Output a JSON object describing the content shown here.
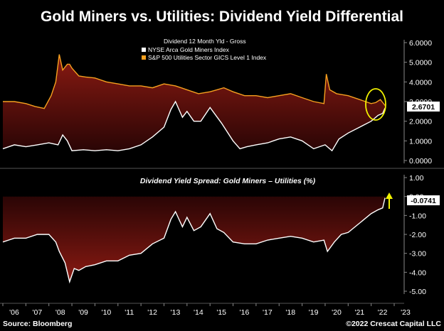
{
  "title": "Gold Miners vs. Utilities: Dividend Yield Differential",
  "spread_title": "Dividend Yield Spread: Gold Miners – Utilities (%)",
  "legend": {
    "title": "Dividend 12 Month Yld - Gross",
    "entries": [
      {
        "label": "NYSE Arca Gold Miners Index",
        "color": "#ffffff"
      },
      {
        "label": "S&P 500 Utilities Sector GICS Level 1 Index",
        "color": "#f6a01f"
      }
    ]
  },
  "badges": {
    "top_value": "2.6701",
    "bottom_value": "-0.0741"
  },
  "footer": {
    "source": "Source: Bloomberg",
    "copyright": "©2022 Crescat Capital LLC"
  },
  "colors": {
    "utilities": "#f6a01f",
    "gold_miners": "#ffffff",
    "fill": "#8a1a12",
    "highlight": "#f2f200"
  },
  "chart_data": [
    {
      "type": "line",
      "x_ticks": [
        "'06",
        "'07",
        "'08",
        "'09",
        "'10",
        "'11",
        "'12",
        "'13",
        "'14",
        "'15",
        "'16",
        "'17",
        "'18",
        "'19",
        "'20",
        "'21",
        "'22",
        "'23"
      ],
      "y_ticks": [
        "6.0000",
        "5.0000",
        "4.0000",
        "3.0000",
        "2.0000",
        "1.0000",
        "0.0000"
      ],
      "ylim": [
        0,
        6
      ],
      "xlim": [
        2006,
        2023
      ],
      "series": [
        {
          "name": "S&P 500 Utilities Sector GICS Level 1 Index",
          "x": [
            2006.0,
            2006.5,
            2007.0,
            2007.4,
            2007.8,
            2008.1,
            2008.3,
            2008.45,
            2008.6,
            2008.8,
            2008.9,
            2009.0,
            2009.3,
            2009.6,
            2010.0,
            2010.5,
            2011.0,
            2011.5,
            2012.0,
            2012.5,
            2013.0,
            2013.5,
            2014.0,
            2014.5,
            2015.0,
            2015.3,
            2015.6,
            2016.0,
            2016.5,
            2017.0,
            2017.5,
            2018.0,
            2018.5,
            2019.0,
            2019.5,
            2019.95,
            2020.05,
            2020.2,
            2020.5,
            2021.0,
            2021.5,
            2022.0,
            2022.2,
            2022.4,
            2022.6
          ],
          "values": [
            3.0,
            3.0,
            2.9,
            2.75,
            2.65,
            3.3,
            4.0,
            5.4,
            4.6,
            4.9,
            4.9,
            4.7,
            4.3,
            4.25,
            4.2,
            4.0,
            3.9,
            3.8,
            3.8,
            3.7,
            3.9,
            3.8,
            3.6,
            3.4,
            3.5,
            3.6,
            3.7,
            3.5,
            3.3,
            3.3,
            3.2,
            3.3,
            3.4,
            3.2,
            3.0,
            2.9,
            4.4,
            3.6,
            3.4,
            3.3,
            3.1,
            2.9,
            2.95,
            3.1,
            2.8
          ]
        },
        {
          "name": "NYSE Arca Gold Miners Index",
          "x": [
            2006.0,
            2006.5,
            2007.0,
            2007.5,
            2008.0,
            2008.4,
            2008.6,
            2008.8,
            2009.0,
            2009.5,
            2010.0,
            2010.5,
            2011.0,
            2011.5,
            2012.0,
            2012.5,
            2013.0,
            2013.3,
            2013.5,
            2013.8,
            2014.0,
            2014.3,
            2014.6,
            2015.0,
            2015.5,
            2016.0,
            2016.3,
            2016.6,
            2017.0,
            2017.5,
            2018.0,
            2018.5,
            2019.0,
            2019.5,
            2020.0,
            2020.3,
            2020.6,
            2021.0,
            2021.5,
            2022.0,
            2022.3,
            2022.5,
            2022.6
          ],
          "values": [
            0.6,
            0.8,
            0.7,
            0.8,
            0.9,
            0.8,
            1.3,
            1.0,
            0.5,
            0.55,
            0.5,
            0.55,
            0.5,
            0.6,
            0.8,
            1.2,
            1.7,
            2.6,
            3.0,
            2.2,
            2.5,
            2.0,
            2.0,
            2.7,
            1.9,
            1.0,
            0.6,
            0.7,
            0.8,
            0.9,
            1.1,
            1.2,
            1.0,
            0.6,
            0.8,
            0.5,
            1.1,
            1.4,
            1.7,
            2.0,
            2.3,
            2.4,
            2.67
          ]
        }
      ]
    },
    {
      "type": "area",
      "title": "Dividend Yield Spread: Gold Miners – Utilities (%)",
      "x_ticks": [
        "'06",
        "'07",
        "'08",
        "'09",
        "'10",
        "'11",
        "'12",
        "'13",
        "'14",
        "'15",
        "'16",
        "'17",
        "'18",
        "'19",
        "'20",
        "'21",
        "'22",
        "'23"
      ],
      "y_ticks": [
        "1.00",
        "0.00",
        "-1.00",
        "-2.00",
        "-3.00",
        "-4.00",
        "-5.00"
      ],
      "ylim": [
        -5,
        1
      ],
      "xlim": [
        2006,
        2023
      ],
      "series": [
        {
          "x": [
            2006.0,
            2006.5,
            2007.0,
            2007.5,
            2008.0,
            2008.3,
            2008.45,
            2008.7,
            2008.9,
            2009.1,
            2009.3,
            2009.6,
            2010.0,
            2010.5,
            2011.0,
            2011.5,
            2012.0,
            2012.5,
            2013.0,
            2013.3,
            2013.5,
            2013.8,
            2014.0,
            2014.3,
            2014.6,
            2015.0,
            2015.3,
            2015.6,
            2016.0,
            2016.5,
            2017.0,
            2017.5,
            2018.0,
            2018.5,
            2019.0,
            2019.5,
            2019.95,
            2020.1,
            2020.4,
            2020.7,
            2021.0,
            2021.5,
            2022.0,
            2022.3,
            2022.5,
            2022.6
          ],
          "values": [
            -2.4,
            -2.2,
            -2.2,
            -2.0,
            -2.0,
            -2.4,
            -2.9,
            -3.5,
            -4.5,
            -3.8,
            -3.9,
            -3.7,
            -3.6,
            -3.4,
            -3.4,
            -3.1,
            -3.0,
            -2.5,
            -2.2,
            -1.2,
            -0.8,
            -1.6,
            -1.1,
            -1.8,
            -1.6,
            -0.9,
            -1.7,
            -1.9,
            -2.4,
            -2.5,
            -2.5,
            -2.3,
            -2.2,
            -2.1,
            -2.2,
            -2.4,
            -2.3,
            -2.9,
            -2.4,
            -2.0,
            -1.9,
            -1.4,
            -0.9,
            -0.7,
            -0.6,
            -0.07
          ]
        }
      ]
    }
  ]
}
